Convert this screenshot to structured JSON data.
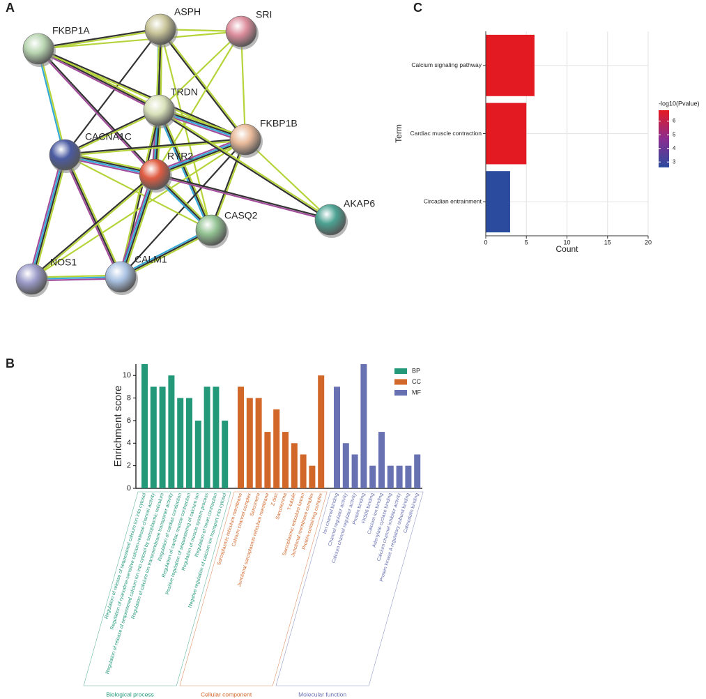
{
  "panels": [
    "A",
    "B",
    "C"
  ],
  "network": {
    "nodes": [
      {
        "label": "ASPH",
        "color": "#c9c59a"
      },
      {
        "label": "SRI",
        "color": "#dc8d9c"
      },
      {
        "label": "FKBP1A",
        "color": "#b9d6b1"
      },
      {
        "label": "TRDN",
        "color": "#d9e1ba"
      },
      {
        "label": "FKBP1B",
        "color": "#e9ba9a"
      },
      {
        "label": "CACNA1C",
        "color": "#4b5ba2"
      },
      {
        "label": "RYR2",
        "color": "#e05c42"
      },
      {
        "label": "AKAP6",
        "color": "#4ba292"
      },
      {
        "label": "CASQ2",
        "color": "#92c292"
      },
      {
        "label": "NOS1",
        "color": "#9c9cca"
      },
      {
        "label": "CALM1",
        "color": "#aac2e2"
      }
    ]
  },
  "chart_data": [
    {
      "type": "hbar",
      "x_label": "Count",
      "y_label": "Term",
      "categories": [
        "Calcium signaling pathway",
        "Cardiac muscle contraction",
        "Circadian entrainment"
      ],
      "values": [
        6,
        5,
        3
      ],
      "colors": [
        "#e41a22",
        "#e41a22",
        "#2b4b9e"
      ],
      "xlim": [
        0,
        20
      ],
      "xticks": [
        0,
        5,
        10,
        15,
        20
      ],
      "grid": true,
      "colorbar": {
        "title": "-log10(Pvalue)",
        "lim": [
          2.6,
          6.8
        ],
        "ticks": [
          3,
          4,
          5,
          6
        ],
        "colors": [
          "#2b4b9e",
          "#8a2d90",
          "#e41a22"
        ]
      }
    },
    {
      "type": "grouped_bar",
      "y_label": "Enrichment score",
      "ylim": [
        0,
        11
      ],
      "yticks": [
        0,
        2,
        4,
        6,
        8,
        10
      ],
      "legend": "top-right",
      "groups": [
        {
          "name": "BP",
          "label": "Biological process",
          "color": "#23997a",
          "categories": [
            "Regulation of release of sequestered calcium ion into cytosol",
            "Regulation of ryanodine-sensitive calcium-release channel activity",
            "Regulation of release of sequestered calcium ion into cytosol by sarcoplasmic reticulum",
            "Regulation of calcium ion transmembrane transporter activity",
            "Regulation of cardiac conduction",
            "Regulation of cardiac muscle contraction",
            "Positive regulation of sequestering of calcium ion",
            "Regulation of muscle system process",
            "Regulation of heart contraction",
            "Negative regulation of calcium ion transport into cytosol"
          ],
          "values": [
            11,
            9,
            9,
            10,
            8,
            8,
            6,
            9,
            9,
            6
          ]
        },
        {
          "name": "CC",
          "label": "Cellular component",
          "color": "#d2672a",
          "categories": [
            "Sarcoplasmic reticulum membrane",
            "Calcium channel complex",
            "Sarcomere",
            "Junctional sarcoplasmic reticulum membrane",
            "Z disc",
            "Sarcolemma",
            "T-tubule",
            "Sarcoplasmic reticulum lumen",
            "Junctional membrane complex",
            "Protein-containing complex"
          ],
          "values": [
            9,
            8,
            8,
            5,
            7,
            5,
            4,
            3,
            2,
            10
          ]
        },
        {
          "name": "MF",
          "label": "Molecular function",
          "color": "#6871b1",
          "categories": [
            "Ion channel binding",
            "Channel regulator activity",
            "Calcium channel regulator activity",
            "Protein binding",
            "FK506 binding",
            "Calcium ion binding",
            "Adenylate cyclase binding",
            "Calcium channel inhibitor activity",
            "Protein kinase A regulatory subunit binding",
            "Calmodulin binding"
          ],
          "values": [
            9,
            4,
            3,
            11,
            2,
            5,
            2,
            2,
            2,
            3
          ]
        }
      ]
    }
  ]
}
